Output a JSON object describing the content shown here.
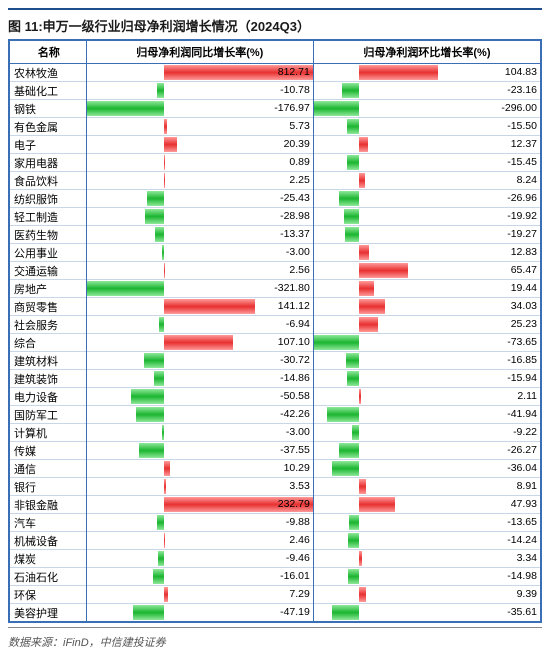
{
  "title": "图 11:申万一级行业归母净利润增长情况（2024Q3）",
  "source": "数据来源：iFinD，中信建投证券",
  "columns": {
    "name": "名称",
    "col1": "归母净利润同比增长率(%)",
    "col2": "归母净利润环比增长率(%)"
  },
  "chart": {
    "col1_axis_pct": 34,
    "col1_scale": 350,
    "col2_axis_pct": 20,
    "col2_scale": 300,
    "pos_color_top": "#ff9a9a",
    "pos_color_mid": "#e83030",
    "neg_color_top": "#8fe89a",
    "neg_color_mid": "#1bb530",
    "border_color": "#3b6fb5",
    "row_line_color": "#c9d6e8"
  },
  "rows": [
    {
      "name": "农林牧渔",
      "v1": 812.71,
      "v2": 104.83
    },
    {
      "name": "基础化工",
      "v1": -10.78,
      "v2": -23.16
    },
    {
      "name": "钢铁",
      "v1": -176.97,
      "v2": -296.0
    },
    {
      "name": "有色金属",
      "v1": 5.73,
      "v2": -15.5
    },
    {
      "name": "电子",
      "v1": 20.39,
      "v2": 12.37
    },
    {
      "name": "家用电器",
      "v1": 0.89,
      "v2": -15.45
    },
    {
      "name": "食品饮料",
      "v1": 2.25,
      "v2": 8.24
    },
    {
      "name": "纺织服饰",
      "v1": -25.43,
      "v2": -26.96
    },
    {
      "name": "轻工制造",
      "v1": -28.98,
      "v2": -19.92
    },
    {
      "name": "医药生物",
      "v1": -13.37,
      "v2": -19.27
    },
    {
      "name": "公用事业",
      "v1": -3.0,
      "v2": 12.83
    },
    {
      "name": "交通运输",
      "v1": 2.56,
      "v2": 65.47
    },
    {
      "name": "房地产",
      "v1": -321.8,
      "v2": 19.44
    },
    {
      "name": "商贸零售",
      "v1": 141.12,
      "v2": 34.03
    },
    {
      "name": "社会服务",
      "v1": -6.94,
      "v2": 25.23
    },
    {
      "name": "综合",
      "v1": 107.1,
      "v2": -73.65
    },
    {
      "name": "建筑材料",
      "v1": -30.72,
      "v2": -16.85
    },
    {
      "name": "建筑装饰",
      "v1": -14.86,
      "v2": -15.94
    },
    {
      "name": "电力设备",
      "v1": -50.58,
      "v2": 2.11
    },
    {
      "name": "国防军工",
      "v1": -42.26,
      "v2": -41.94
    },
    {
      "name": "计算机",
      "v1": -3.0,
      "v2": -9.22
    },
    {
      "name": "传媒",
      "v1": -37.55,
      "v2": -26.27
    },
    {
      "name": "通信",
      "v1": 10.29,
      "v2": -36.04
    },
    {
      "name": "银行",
      "v1": 3.53,
      "v2": 8.91
    },
    {
      "name": "非银金融",
      "v1": 232.79,
      "v2": 47.93
    },
    {
      "name": "汽车",
      "v1": -9.88,
      "v2": -13.65
    },
    {
      "name": "机械设备",
      "v1": 2.46,
      "v2": -14.24
    },
    {
      "name": "煤炭",
      "v1": -9.46,
      "v2": 3.34
    },
    {
      "name": "石油石化",
      "v1": -16.01,
      "v2": -14.98
    },
    {
      "name": "环保",
      "v1": 7.29,
      "v2": 9.39
    },
    {
      "name": "美容护理",
      "v1": -47.19,
      "v2": -35.61
    }
  ]
}
